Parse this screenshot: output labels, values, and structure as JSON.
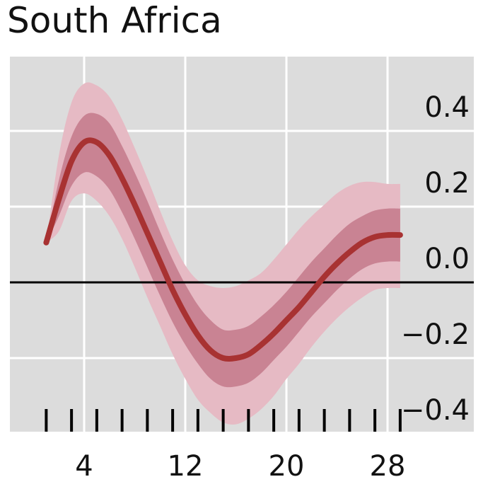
{
  "chart_data": {
    "type": "line",
    "title": "South Africa",
    "xlabel": "",
    "ylabel": "",
    "xlim": [
      0,
      35
    ],
    "ylim": [
      -0.4,
      0.55
    ],
    "x_ticks": [
      1,
      3,
      5,
      7,
      9,
      11,
      13,
      15,
      17,
      19,
      21,
      23,
      25,
      27,
      29
    ],
    "x_tick_labels": [
      {
        "x": 4,
        "label": "4"
      },
      {
        "x": 12,
        "label": "12"
      },
      {
        "x": 20,
        "label": "20"
      },
      {
        "x": 28,
        "label": "28"
      }
    ],
    "y_tick_labels": [
      {
        "y": 0.4,
        "label": "0.4"
      },
      {
        "y": 0.2,
        "label": "0.2"
      },
      {
        "y": 0.0,
        "label": "0.0"
      },
      {
        "y": -0.2,
        "label": "−0.2"
      },
      {
        "y": -0.4,
        "label": "−0.4"
      }
    ],
    "grid": true,
    "zero_line": true,
    "x": [
      1,
      2,
      3,
      4,
      5,
      6,
      7,
      8,
      9,
      10,
      11,
      12,
      13,
      14,
      15,
      16,
      17,
      18,
      19,
      20,
      21,
      22,
      23,
      24,
      25,
      26,
      27,
      28,
      29
    ],
    "series": [
      {
        "kind": "line",
        "values": [
          0.105,
          0.22,
          0.32,
          0.37,
          0.37,
          0.335,
          0.275,
          0.205,
          0.13,
          0.055,
          -0.02,
          -0.085,
          -0.14,
          -0.18,
          -0.2,
          -0.2,
          -0.19,
          -0.165,
          -0.135,
          -0.1,
          -0.065,
          -0.025,
          0.015,
          0.05,
          0.08,
          0.105,
          0.12,
          0.125,
          0.125
        ]
      },
      {
        "kind": "band-inner",
        "lower": [
          0.105,
          0.175,
          0.255,
          0.29,
          0.28,
          0.245,
          0.185,
          0.115,
          0.04,
          -0.035,
          -0.105,
          -0.165,
          -0.215,
          -0.255,
          -0.275,
          -0.275,
          -0.265,
          -0.24,
          -0.205,
          -0.17,
          -0.13,
          -0.09,
          -0.055,
          -0.02,
          0.01,
          0.035,
          0.05,
          0.055,
          0.055
        ],
        "upper": [
          0.105,
          0.27,
          0.385,
          0.44,
          0.445,
          0.42,
          0.36,
          0.29,
          0.215,
          0.135,
          0.06,
          -0.005,
          -0.06,
          -0.1,
          -0.125,
          -0.125,
          -0.115,
          -0.09,
          -0.06,
          -0.025,
          0.015,
          0.055,
          0.09,
          0.125,
          0.155,
          0.175,
          0.19,
          0.195,
          0.195
        ]
      },
      {
        "kind": "band-outer",
        "lower": [
          0.105,
          0.135,
          0.215,
          0.235,
          0.215,
          0.175,
          0.115,
          0.04,
          -0.04,
          -0.115,
          -0.19,
          -0.255,
          -0.31,
          -0.345,
          -0.37,
          -0.375,
          -0.36,
          -0.335,
          -0.3,
          -0.255,
          -0.215,
          -0.17,
          -0.13,
          -0.095,
          -0.065,
          -0.04,
          -0.02,
          -0.015,
          -0.015
        ],
        "upper": [
          0.105,
          0.335,
          0.475,
          0.525,
          0.52,
          0.49,
          0.43,
          0.355,
          0.275,
          0.19,
          0.11,
          0.045,
          0.005,
          -0.01,
          -0.015,
          -0.01,
          0.005,
          0.025,
          0.06,
          0.1,
          0.14,
          0.175,
          0.205,
          0.235,
          0.255,
          0.265,
          0.265,
          0.26,
          0.26
        ]
      }
    ],
    "colors": {
      "panel": "#dcdcdc",
      "grid": "#ffffff",
      "line": "#a83232",
      "band_inner": "#c98393",
      "band_outer": "#e6bac4",
      "zero_line": "#000000",
      "ticks": "#000000"
    }
  }
}
